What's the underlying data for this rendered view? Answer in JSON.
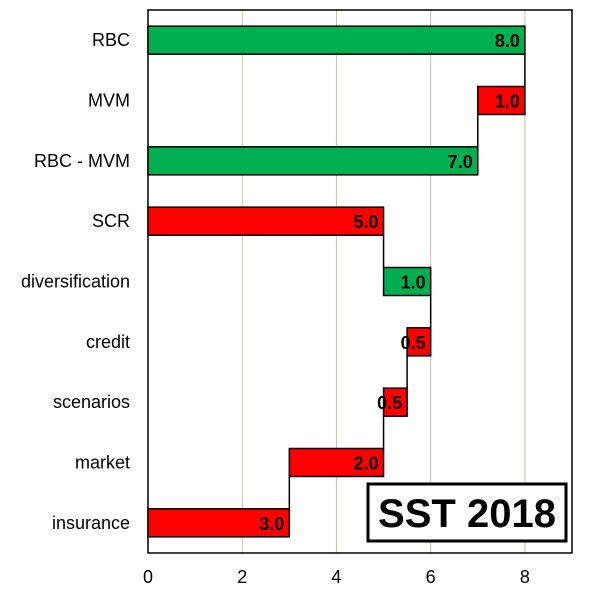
{
  "chart_data": {
    "type": "bar",
    "subtype": "waterfall-horizontal",
    "categories": [
      "RBC",
      "MVM",
      "RBC - MVM",
      "SCR",
      "diversification",
      "credit",
      "scenarios",
      "market",
      "insurance"
    ],
    "bars": [
      {
        "category": "RBC",
        "start": 0,
        "end": 8.0,
        "value": 8.0,
        "label": "8.0",
        "color": "#00b050"
      },
      {
        "category": "MVM",
        "start": 7.0,
        "end": 8.0,
        "value": 1.0,
        "label": "1.0",
        "color": "#ff0000"
      },
      {
        "category": "RBC - MVM",
        "start": 0,
        "end": 7.0,
        "value": 7.0,
        "label": "7.0",
        "color": "#00b050"
      },
      {
        "category": "SCR",
        "start": 0,
        "end": 5.0,
        "value": 5.0,
        "label": "5.0",
        "color": "#ff0000"
      },
      {
        "category": "diversification",
        "start": 5.0,
        "end": 6.0,
        "value": 1.0,
        "label": "1.0",
        "color": "#00b050"
      },
      {
        "category": "credit",
        "start": 5.5,
        "end": 6.0,
        "value": 0.5,
        "label": "0.5",
        "color": "#ff0000"
      },
      {
        "category": "scenarios",
        "start": 5.0,
        "end": 5.5,
        "value": 0.5,
        "label": "0.5",
        "color": "#ff0000"
      },
      {
        "category": "market",
        "start": 3.0,
        "end": 5.0,
        "value": 2.0,
        "label": "2.0",
        "color": "#ff0000"
      },
      {
        "category": "insurance",
        "start": 0,
        "end": 3.0,
        "value": 3.0,
        "label": "3.0",
        "color": "#ff0000"
      }
    ],
    "xlim": [
      0,
      9
    ],
    "xticks": [
      0,
      2,
      4,
      6,
      8
    ],
    "grid": "vertical",
    "gridColor": "#c8c0a8",
    "badge": "SST 2018",
    "title": "",
    "xlabel": "",
    "ylabel": ""
  }
}
